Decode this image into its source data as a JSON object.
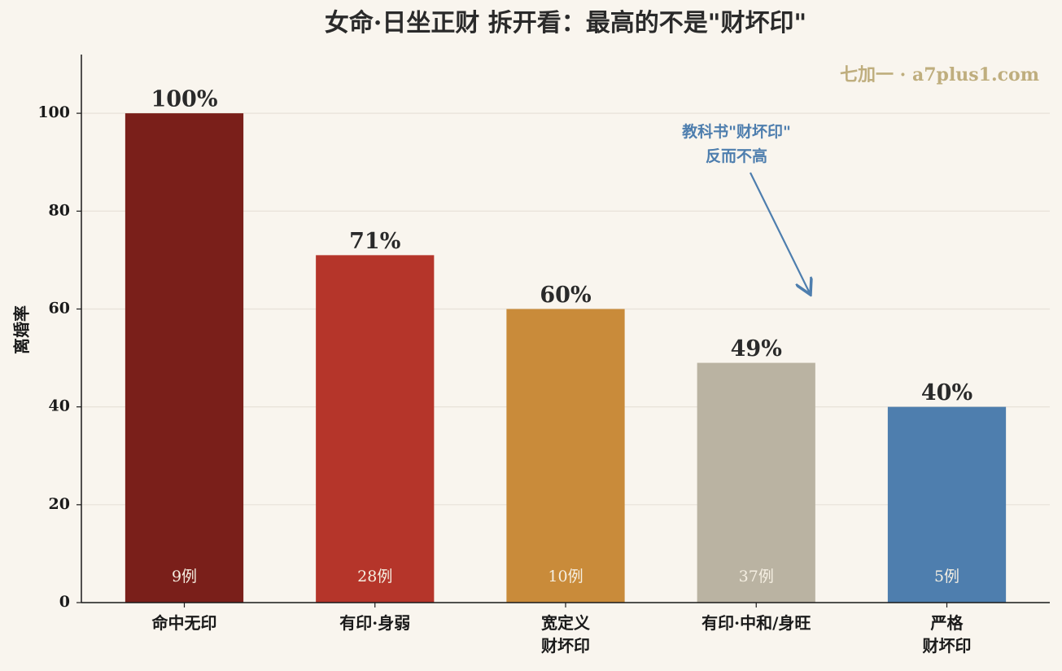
{
  "chart_data": {
    "type": "bar",
    "title": "女命·日坐正财 拆开看：最高的不是\"财坏印\"",
    "ylabel": "离婚率",
    "categories": [
      "命中无印",
      "有印·身弱",
      "宽定义\n财坏印",
      "有印·中和/身旺",
      "严格\n财坏印"
    ],
    "values": [
      100,
      71,
      60,
      49,
      40
    ],
    "value_labels": [
      "100%",
      "71%",
      "60%",
      "49%",
      "40%"
    ],
    "bar_notes": [
      "9例",
      "28例",
      "10例",
      "37例",
      "5例"
    ],
    "colors": [
      "#7a1f1a",
      "#b5352a",
      "#c98b3a",
      "#bab3a2",
      "#4e7eae"
    ],
    "ylim": [
      0,
      112
    ],
    "yticks": [
      0,
      20,
      40,
      60,
      80,
      100
    ],
    "grid": true,
    "annotation": "教科书\"财坏印\"\n反而不高",
    "watermark": "七加一 · a7plus1.com"
  }
}
